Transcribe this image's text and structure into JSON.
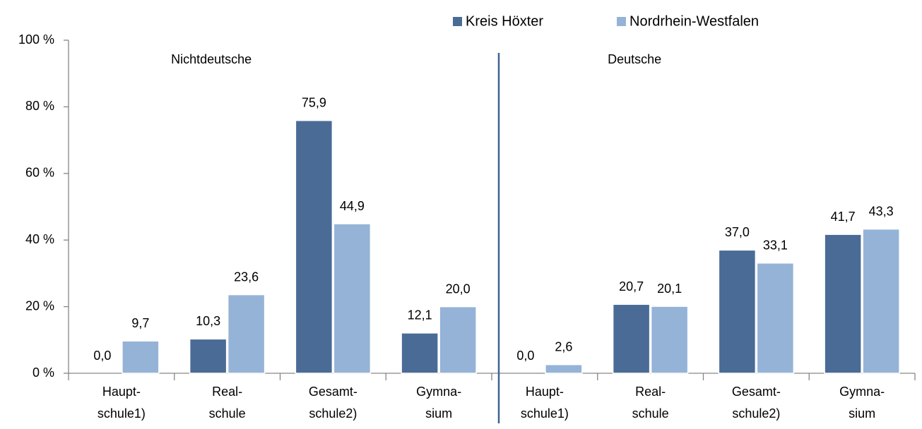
{
  "chart_data": {
    "type": "bar",
    "categories": [
      [
        "Haupt-",
        "schule1)"
      ],
      [
        "Real-",
        "schule"
      ],
      [
        "Gesamt-",
        "schule2)"
      ],
      [
        "Gymna-",
        "sium"
      ],
      [
        "Haupt-",
        "schule1)"
      ],
      [
        "Real-",
        "schule"
      ],
      [
        "Gesamt-",
        "schule2)"
      ],
      [
        "Gymna-",
        "sium"
      ]
    ],
    "groups": [
      {
        "label": "Nichtdeutsche"
      },
      {
        "label": "Deutsche"
      }
    ],
    "series": [
      {
        "name": "Kreis Höxter",
        "color": "#4a6b96",
        "values": [
          0.0,
          10.3,
          75.9,
          12.1,
          0.0,
          20.7,
          37.0,
          41.7
        ],
        "value_labels": [
          "0,0",
          "10,3",
          "75,9",
          "12,1",
          "0,0",
          "20,7",
          "37,0",
          "41,7"
        ]
      },
      {
        "name": "Nordrhein-Westfalen",
        "color": "#95b3d7",
        "values": [
          9.7,
          23.6,
          44.9,
          20.0,
          2.6,
          20.1,
          33.1,
          43.3
        ],
        "value_labels": [
          "9,7",
          "23,6",
          "44,9",
          "20,0",
          "2,6",
          "20,1",
          "33,1",
          "43,3"
        ]
      }
    ],
    "ylim": [
      0,
      100
    ],
    "yticks": [
      {
        "value": 0,
        "label": "0 %"
      },
      {
        "value": 20,
        "label": "20 %"
      },
      {
        "value": 40,
        "label": "40 %"
      },
      {
        "value": 60,
        "label": "60 %"
      },
      {
        "value": 80,
        "label": "80 %"
      },
      {
        "value": 100,
        "label": "100 %"
      }
    ],
    "legend": "top-right",
    "grid": false
  }
}
